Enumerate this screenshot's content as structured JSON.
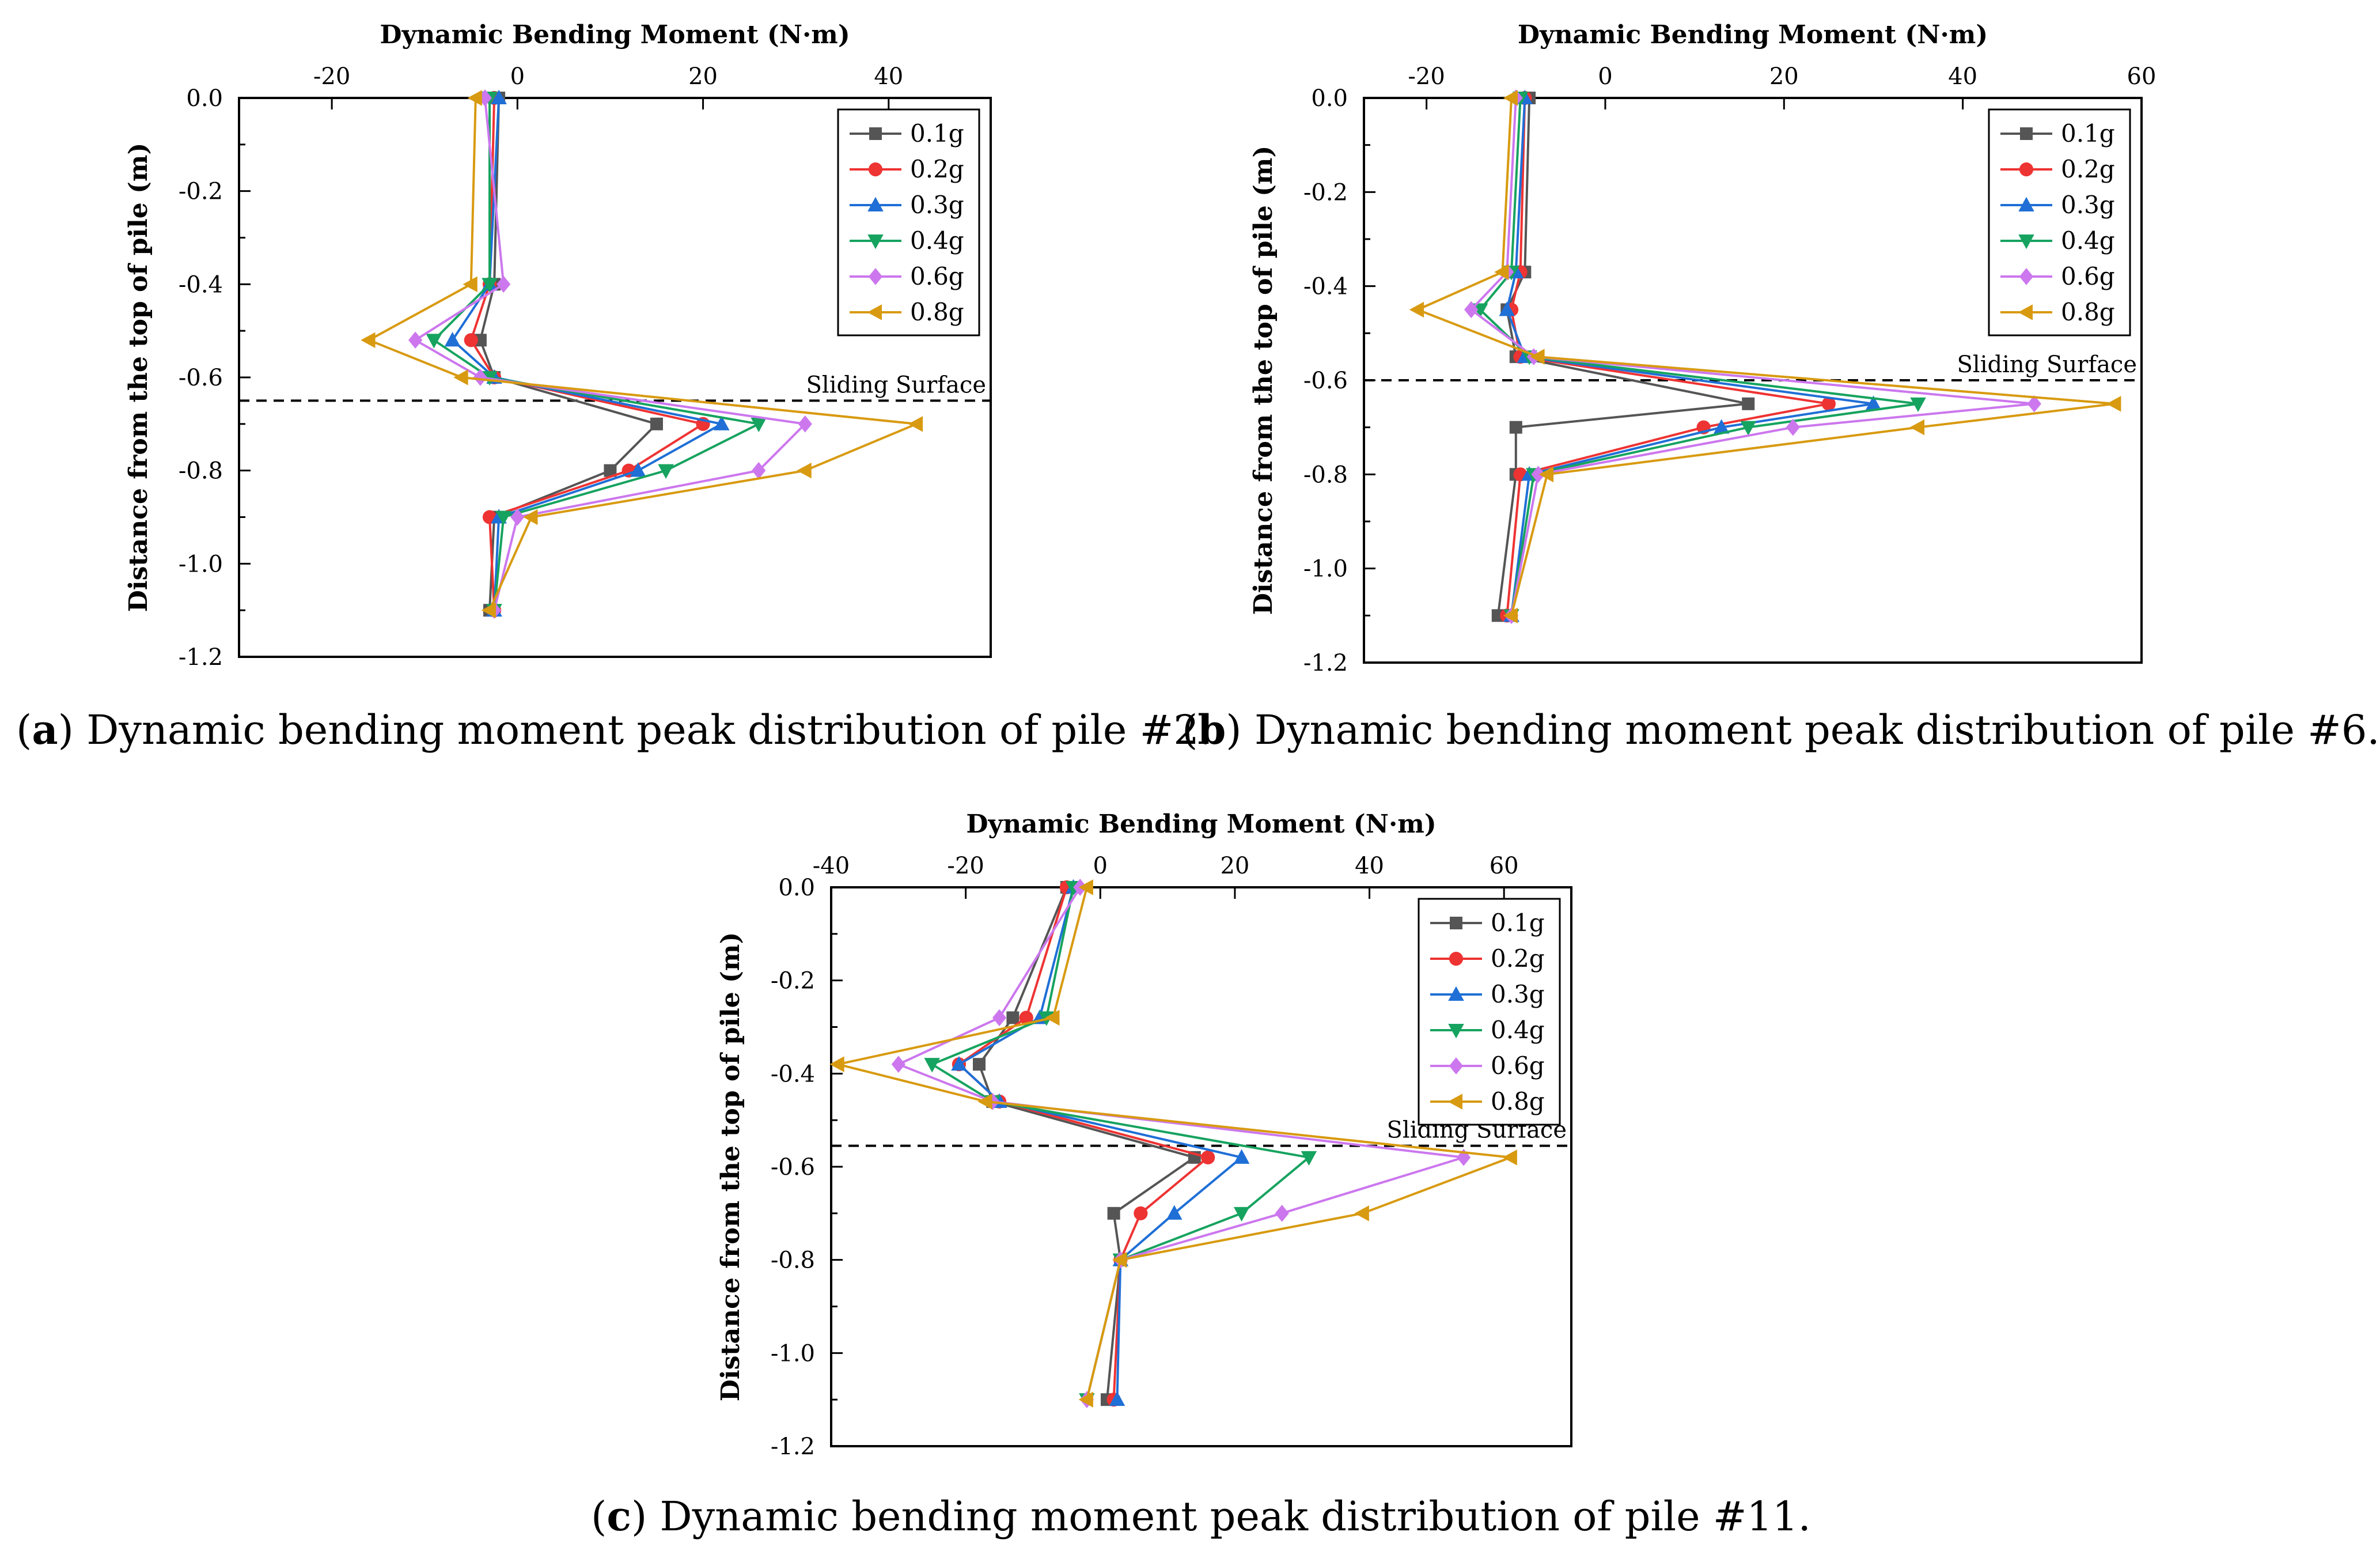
{
  "captions": [
    {
      "letter": "a",
      "text": "Dynamic bending moment peak distribution of pile #2."
    },
    {
      "letter": "b",
      "text": "Dynamic bending moment peak distribution of pile #6."
    },
    {
      "letter": "c",
      "text": "Dynamic bending moment peak distribution of pile #11."
    }
  ],
  "series_style": [
    {
      "name": "0.1g",
      "color": "#555555",
      "marker": "square"
    },
    {
      "name": "0.2g",
      "color": "#ee3333",
      "marker": "circle"
    },
    {
      "name": "0.3g",
      "color": "#1f6fd6",
      "marker": "triangle-up"
    },
    {
      "name": "0.4g",
      "color": "#16a35f",
      "marker": "triangle-down"
    },
    {
      "name": "0.6g",
      "color": "#cc77ee",
      "marker": "diamond"
    },
    {
      "name": "0.8g",
      "color": "#d89a10",
      "marker": "triangle-left"
    }
  ],
  "chart_data": [
    {
      "type": "line",
      "id": "a",
      "title": "Dynamic Bending Moment (N·m)",
      "xlabel": "Dynamic Bending Moment (N·m)",
      "ylabel": "Distance from the top of pile (m)",
      "xlim": [
        -30,
        51
      ],
      "ylim": [
        -1.2,
        0.0
      ],
      "xticks": [
        -20,
        0,
        20,
        40
      ],
      "yticks": [
        0.0,
        -0.2,
        -0.4,
        -0.6,
        -0.8,
        -1.0,
        -1.2
      ],
      "ytick_labels": [
        "0.0",
        "-0.2",
        "-0.4",
        "-0.6",
        "-0.8",
        "-1.0",
        "-1.2"
      ],
      "sliding_surface": {
        "y": -0.65,
        "label": "Sliding Surface"
      },
      "legend_position": "top-right",
      "series": [
        {
          "name": "0.1g",
          "points": [
            [
              -2,
              0
            ],
            [
              -2.5,
              -0.4
            ],
            [
              -4,
              -0.52
            ],
            [
              -2.5,
              -0.6
            ],
            [
              15,
              -0.7
            ],
            [
              10,
              -0.8
            ],
            [
              -2.5,
              -0.9
            ],
            [
              -3,
              -1.1
            ]
          ]
        },
        {
          "name": "0.2g",
          "points": [
            [
              -2.5,
              0
            ],
            [
              -3,
              -0.4
            ],
            [
              -5,
              -0.52
            ],
            [
              -2.5,
              -0.6
            ],
            [
              20,
              -0.7
            ],
            [
              12,
              -0.8
            ],
            [
              -3,
              -0.9
            ],
            [
              -2.5,
              -1.1
            ]
          ]
        },
        {
          "name": "0.3g",
          "points": [
            [
              -2,
              0
            ],
            [
              -3,
              -0.4
            ],
            [
              -7,
              -0.52
            ],
            [
              -2.5,
              -0.6
            ],
            [
              22,
              -0.7
            ],
            [
              13,
              -0.8
            ],
            [
              -2,
              -0.9
            ],
            [
              -2.5,
              -1.1
            ]
          ]
        },
        {
          "name": "0.4g",
          "points": [
            [
              -3,
              0
            ],
            [
              -3,
              -0.4
            ],
            [
              -9,
              -0.52
            ],
            [
              -3,
              -0.6
            ],
            [
              26,
              -0.7
            ],
            [
              16,
              -0.8
            ],
            [
              -1.5,
              -0.9
            ],
            [
              -2.5,
              -1.1
            ]
          ]
        },
        {
          "name": "0.6g",
          "points": [
            [
              -3.5,
              0
            ],
            [
              -1.5,
              -0.4
            ],
            [
              -11,
              -0.52
            ],
            [
              -4,
              -0.6
            ],
            [
              31,
              -0.7
            ],
            [
              26,
              -0.8
            ],
            [
              0,
              -0.9
            ],
            [
              -2.5,
              -1.1
            ]
          ]
        },
        {
          "name": "0.8g",
          "points": [
            [
              -4.5,
              0
            ],
            [
              -5,
              -0.4
            ],
            [
              -16,
              -0.52
            ],
            [
              -6,
              -0.6
            ],
            [
              43,
              -0.7
            ],
            [
              31,
              -0.8
            ],
            [
              1.5,
              -0.9
            ],
            [
              -3,
              -1.1
            ]
          ]
        }
      ]
    },
    {
      "type": "line",
      "id": "b",
      "title": "Dynamic Bending Moment (N·m)",
      "xlabel": "Dynamic Bending Moment (N·m)",
      "ylabel": "Distance from the top of pile (m)",
      "xlim": [
        -27,
        60
      ],
      "ylim": [
        -1.2,
        0.0
      ],
      "xticks": [
        -20,
        0,
        20,
        40,
        60
      ],
      "yticks": [
        0.0,
        -0.2,
        -0.4,
        -0.6,
        -0.8,
        -1.0,
        -1.2
      ],
      "ytick_labels": [
        "0.0",
        "-0.2",
        "-0.4",
        "-0.6",
        "-0.8",
        "-1.0",
        "-1.2"
      ],
      "sliding_surface": {
        "y": -0.6,
        "label": "Sliding Surface"
      },
      "legend_position": "top-right",
      "series": [
        {
          "name": "0.1g",
          "points": [
            [
              -8.5,
              0
            ],
            [
              -9,
              -0.37
            ],
            [
              -11,
              -0.45
            ],
            [
              -10,
              -0.55
            ],
            [
              16,
              -0.65
            ],
            [
              -10,
              -0.7
            ],
            [
              -10,
              -0.8
            ],
            [
              -12,
              -1.1
            ]
          ]
        },
        {
          "name": "0.2g",
          "points": [
            [
              -9,
              0
            ],
            [
              -9.5,
              -0.37
            ],
            [
              -10.5,
              -0.45
            ],
            [
              -9.5,
              -0.55
            ],
            [
              25,
              -0.65
            ],
            [
              11,
              -0.7
            ],
            [
              -9.5,
              -0.8
            ],
            [
              -11,
              -1.1
            ]
          ]
        },
        {
          "name": "0.3g",
          "points": [
            [
              -9,
              0
            ],
            [
              -10,
              -0.37
            ],
            [
              -11,
              -0.45
            ],
            [
              -9,
              -0.55
            ],
            [
              30,
              -0.65
            ],
            [
              13,
              -0.7
            ],
            [
              -8.5,
              -0.8
            ],
            [
              -10.5,
              -1.1
            ]
          ]
        },
        {
          "name": "0.4g",
          "points": [
            [
              -9.5,
              0
            ],
            [
              -10.5,
              -0.37
            ],
            [
              -14,
              -0.45
            ],
            [
              -8.5,
              -0.55
            ],
            [
              35,
              -0.65
            ],
            [
              16,
              -0.7
            ],
            [
              -8,
              -0.8
            ],
            [
              -10.5,
              -1.1
            ]
          ]
        },
        {
          "name": "0.6g",
          "points": [
            [
              -10,
              0
            ],
            [
              -11,
              -0.37
            ],
            [
              -15,
              -0.45
            ],
            [
              -8,
              -0.55
            ],
            [
              48,
              -0.65
            ],
            [
              21,
              -0.7
            ],
            [
              -7.5,
              -0.8
            ],
            [
              -10.5,
              -1.1
            ]
          ]
        },
        {
          "name": "0.8g",
          "points": [
            [
              -10.5,
              0
            ],
            [
              -11.5,
              -0.37
            ],
            [
              -21,
              -0.45
            ],
            [
              -7.5,
              -0.55
            ],
            [
              57,
              -0.65
            ],
            [
              35,
              -0.7
            ],
            [
              -6.5,
              -0.8
            ],
            [
              -10.5,
              -1.1
            ]
          ]
        }
      ]
    },
    {
      "type": "line",
      "id": "c",
      "title": "Dynamic Bending Moment (N·m)",
      "xlabel": "Dynamic Bending Moment (N·m)",
      "ylabel": "Distance from the top of pile (m)",
      "xlim": [
        -40,
        70
      ],
      "ylim": [
        -1.2,
        0.0
      ],
      "xticks": [
        -40,
        -20,
        0,
        20,
        40,
        60
      ],
      "yticks": [
        0.0,
        -0.2,
        -0.4,
        -0.6,
        -0.8,
        -1.0,
        -1.2
      ],
      "ytick_labels": [
        "0.0",
        "-0.2",
        "-0.4",
        "-0.6",
        "-0.8",
        "-1.0",
        "-1.2"
      ],
      "sliding_surface": {
        "y": -0.555,
        "label": "Sliding Surface"
      },
      "legend_position": "top-right",
      "series": [
        {
          "name": "0.1g",
          "points": [
            [
              -5,
              0
            ],
            [
              -13,
              -0.28
            ],
            [
              -18,
              -0.38
            ],
            [
              -16,
              -0.46
            ],
            [
              14,
              -0.58
            ],
            [
              2,
              -0.7
            ],
            [
              3,
              -0.8
            ],
            [
              1,
              -1.1
            ]
          ]
        },
        {
          "name": "0.2g",
          "points": [
            [
              -5,
              0
            ],
            [
              -11,
              -0.28
            ],
            [
              -21,
              -0.38
            ],
            [
              -15,
              -0.46
            ],
            [
              16,
              -0.58
            ],
            [
              6,
              -0.7
            ],
            [
              3,
              -0.8
            ],
            [
              2,
              -1.1
            ]
          ]
        },
        {
          "name": "0.3g",
          "points": [
            [
              -4,
              0
            ],
            [
              -9,
              -0.28
            ],
            [
              -21,
              -0.38
            ],
            [
              -15,
              -0.46
            ],
            [
              21,
              -0.58
            ],
            [
              11,
              -0.7
            ],
            [
              3,
              -0.8
            ],
            [
              2.5,
              -1.1
            ]
          ]
        },
        {
          "name": "0.4g",
          "points": [
            [
              -4,
              0
            ],
            [
              -8,
              -0.28
            ],
            [
              -25,
              -0.38
            ],
            [
              -16,
              -0.46
            ],
            [
              31,
              -0.58
            ],
            [
              21,
              -0.7
            ],
            [
              3,
              -0.8
            ],
            [
              -2,
              -1.1
            ]
          ]
        },
        {
          "name": "0.6g",
          "points": [
            [
              -3,
              0
            ],
            [
              -15,
              -0.28
            ],
            [
              -30,
              -0.38
            ],
            [
              -16,
              -0.46
            ],
            [
              54,
              -0.58
            ],
            [
              27,
              -0.7
            ],
            [
              3,
              -0.8
            ],
            [
              -2,
              -1.1
            ]
          ]
        },
        {
          "name": "0.8g",
          "points": [
            [
              -2,
              0
            ],
            [
              -7,
              -0.28
            ],
            [
              -39,
              -0.38
            ],
            [
              -17,
              -0.46
            ],
            [
              61,
              -0.58
            ],
            [
              39,
              -0.7
            ],
            [
              3,
              -0.8
            ],
            [
              -2,
              -1.1
            ]
          ]
        }
      ]
    }
  ]
}
